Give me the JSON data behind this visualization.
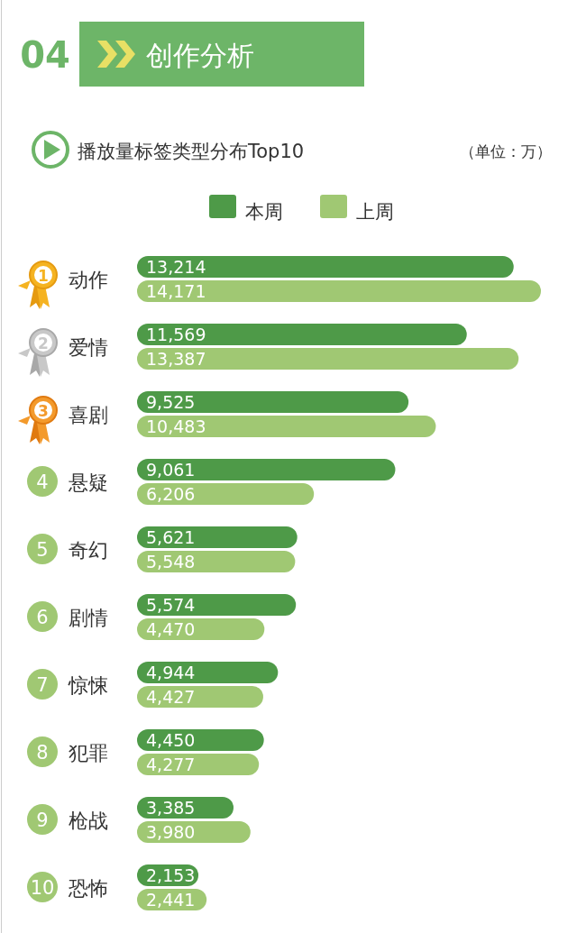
{
  "chart_data": {
    "type": "bar",
    "orientation": "horizontal",
    "title": "播放量标签类型分布Top10",
    "subtitle": "（单位：万）",
    "annotations": [
      "04",
      "创作分析",
      "1",
      "2",
      "3",
      "4",
      "5",
      "6",
      "7",
      "8",
      "9",
      "10"
    ],
    "categories": [
      "动作",
      "爱情",
      "喜剧",
      "悬疑",
      "奇幻",
      "剧情",
      "惊悚",
      "犯罪",
      "枪战",
      "恐怖"
    ],
    "series": [
      {
        "name": "本周",
        "color": "#4e9a48",
        "values": [
          13214,
          11569,
          9525,
          9061,
          5621,
          5574,
          4944,
          4450,
          3385,
          2153
        ],
        "value_labels": [
          "13,214",
          "11,569",
          "9,525",
          "9,061",
          "5,621",
          "5,574",
          "4,944",
          "4,450",
          "3,385",
          "2,153"
        ]
      },
      {
        "name": "上周",
        "color": "#a0c873",
        "values": [
          14171,
          13387,
          10483,
          6206,
          5548,
          4470,
          4427,
          4277,
          3980,
          2441
        ],
        "value_labels": [
          "14,171",
          "13,387",
          "10,483",
          "6,206",
          "5,548",
          "4,470",
          "4,427",
          "4,277",
          "3,980",
          "2,441"
        ]
      }
    ],
    "legend": "top"
  }
}
